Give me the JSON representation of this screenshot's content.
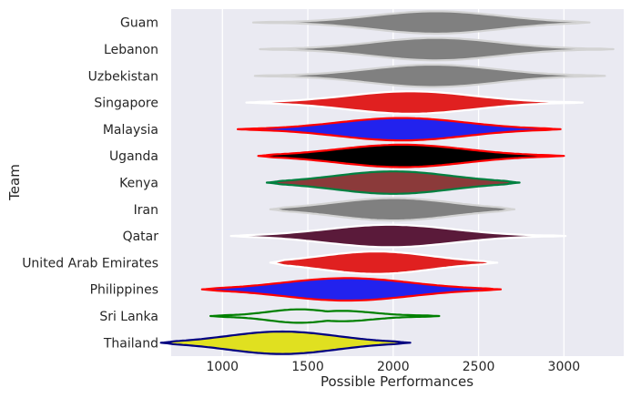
{
  "chart_data": {
    "type": "violin",
    "orientation": "horizontal",
    "title": "",
    "xlabel": "Possible Performances",
    "ylabel": "Team",
    "xlim": [
      700,
      3350
    ],
    "x_ticks": [
      1000,
      1500,
      2000,
      2500,
      3000
    ],
    "x_tick_labels": [
      "1000",
      "1500",
      "2000",
      "2500",
      "3000"
    ],
    "grid": true,
    "background": "#eaeaf2",
    "series": [
      {
        "team": "Guam",
        "fill": "#808080",
        "edge": "#d3d3d3",
        "median": 2250,
        "min": 1180,
        "max": 3150,
        "q1": 2000,
        "q3": 2500,
        "bimodal": false
      },
      {
        "team": "Lebanon",
        "fill": "#808080",
        "edge": "#d3d3d3",
        "median": 2250,
        "min": 1220,
        "max": 3290,
        "q1": 2000,
        "q3": 2500,
        "bimodal": false
      },
      {
        "team": "Uzbekistan",
        "fill": "#808080",
        "edge": "#d3d3d3",
        "median": 2230,
        "min": 1190,
        "max": 3240,
        "q1": 1980,
        "q3": 2480,
        "bimodal": false
      },
      {
        "team": "Singapore",
        "fill": "#e02020",
        "edge": "#ffffff",
        "median": 2100,
        "min": 1140,
        "max": 3110,
        "q1": 1860,
        "q3": 2360,
        "bimodal": false
      },
      {
        "team": "Malaysia",
        "fill": "#2222ee",
        "edge": "#ff0000",
        "median": 2050,
        "min": 1090,
        "max": 2980,
        "q1": 1800,
        "q3": 2300,
        "bimodal": false
      },
      {
        "team": "Uganda",
        "fill": "#000000",
        "edge": "#ff0000",
        "median": 2050,
        "min": 1210,
        "max": 3000,
        "q1": 1800,
        "q3": 2300,
        "bimodal": false
      },
      {
        "team": "Kenya",
        "fill": "#8b3a3a",
        "edge": "#008040",
        "median": 2000,
        "min": 1260,
        "max": 2740,
        "q1": 1780,
        "q3": 2240,
        "bimodal": false
      },
      {
        "team": "Iran",
        "fill": "#808080",
        "edge": "#d3d3d3",
        "median": 2000,
        "min": 1280,
        "max": 2710,
        "q1": 1770,
        "q3": 2230,
        "bimodal": false
      },
      {
        "team": "Qatar",
        "fill": "#5a1a3a",
        "edge": "#ffffff",
        "median": 1980,
        "min": 1050,
        "max": 3010,
        "q1": 1720,
        "q3": 2220,
        "bimodal": false
      },
      {
        "team": "United Arab Emirates",
        "fill": "#e02020",
        "edge": "#ffffff",
        "median": 1900,
        "min": 1280,
        "max": 2610,
        "q1": 1700,
        "q3": 2130,
        "bimodal": false
      },
      {
        "team": "Philippines",
        "fill": "#2222ee",
        "edge": "#ff0000",
        "median": 1730,
        "min": 880,
        "max": 2630,
        "q1": 1480,
        "q3": 1980,
        "bimodal": false
      },
      {
        "team": "Sri Lanka",
        "fill": "#eaeaf2",
        "edge": "#008000",
        "median": 1600,
        "min": 930,
        "max": 2270,
        "q1": 1400,
        "q3": 1800,
        "bimodal": true
      },
      {
        "team": "Thailand",
        "fill": "#e0e020",
        "edge": "#000080",
        "median": 1350,
        "min": 640,
        "max": 2100,
        "q1": 1130,
        "q3": 1560,
        "bimodal": false
      }
    ]
  }
}
